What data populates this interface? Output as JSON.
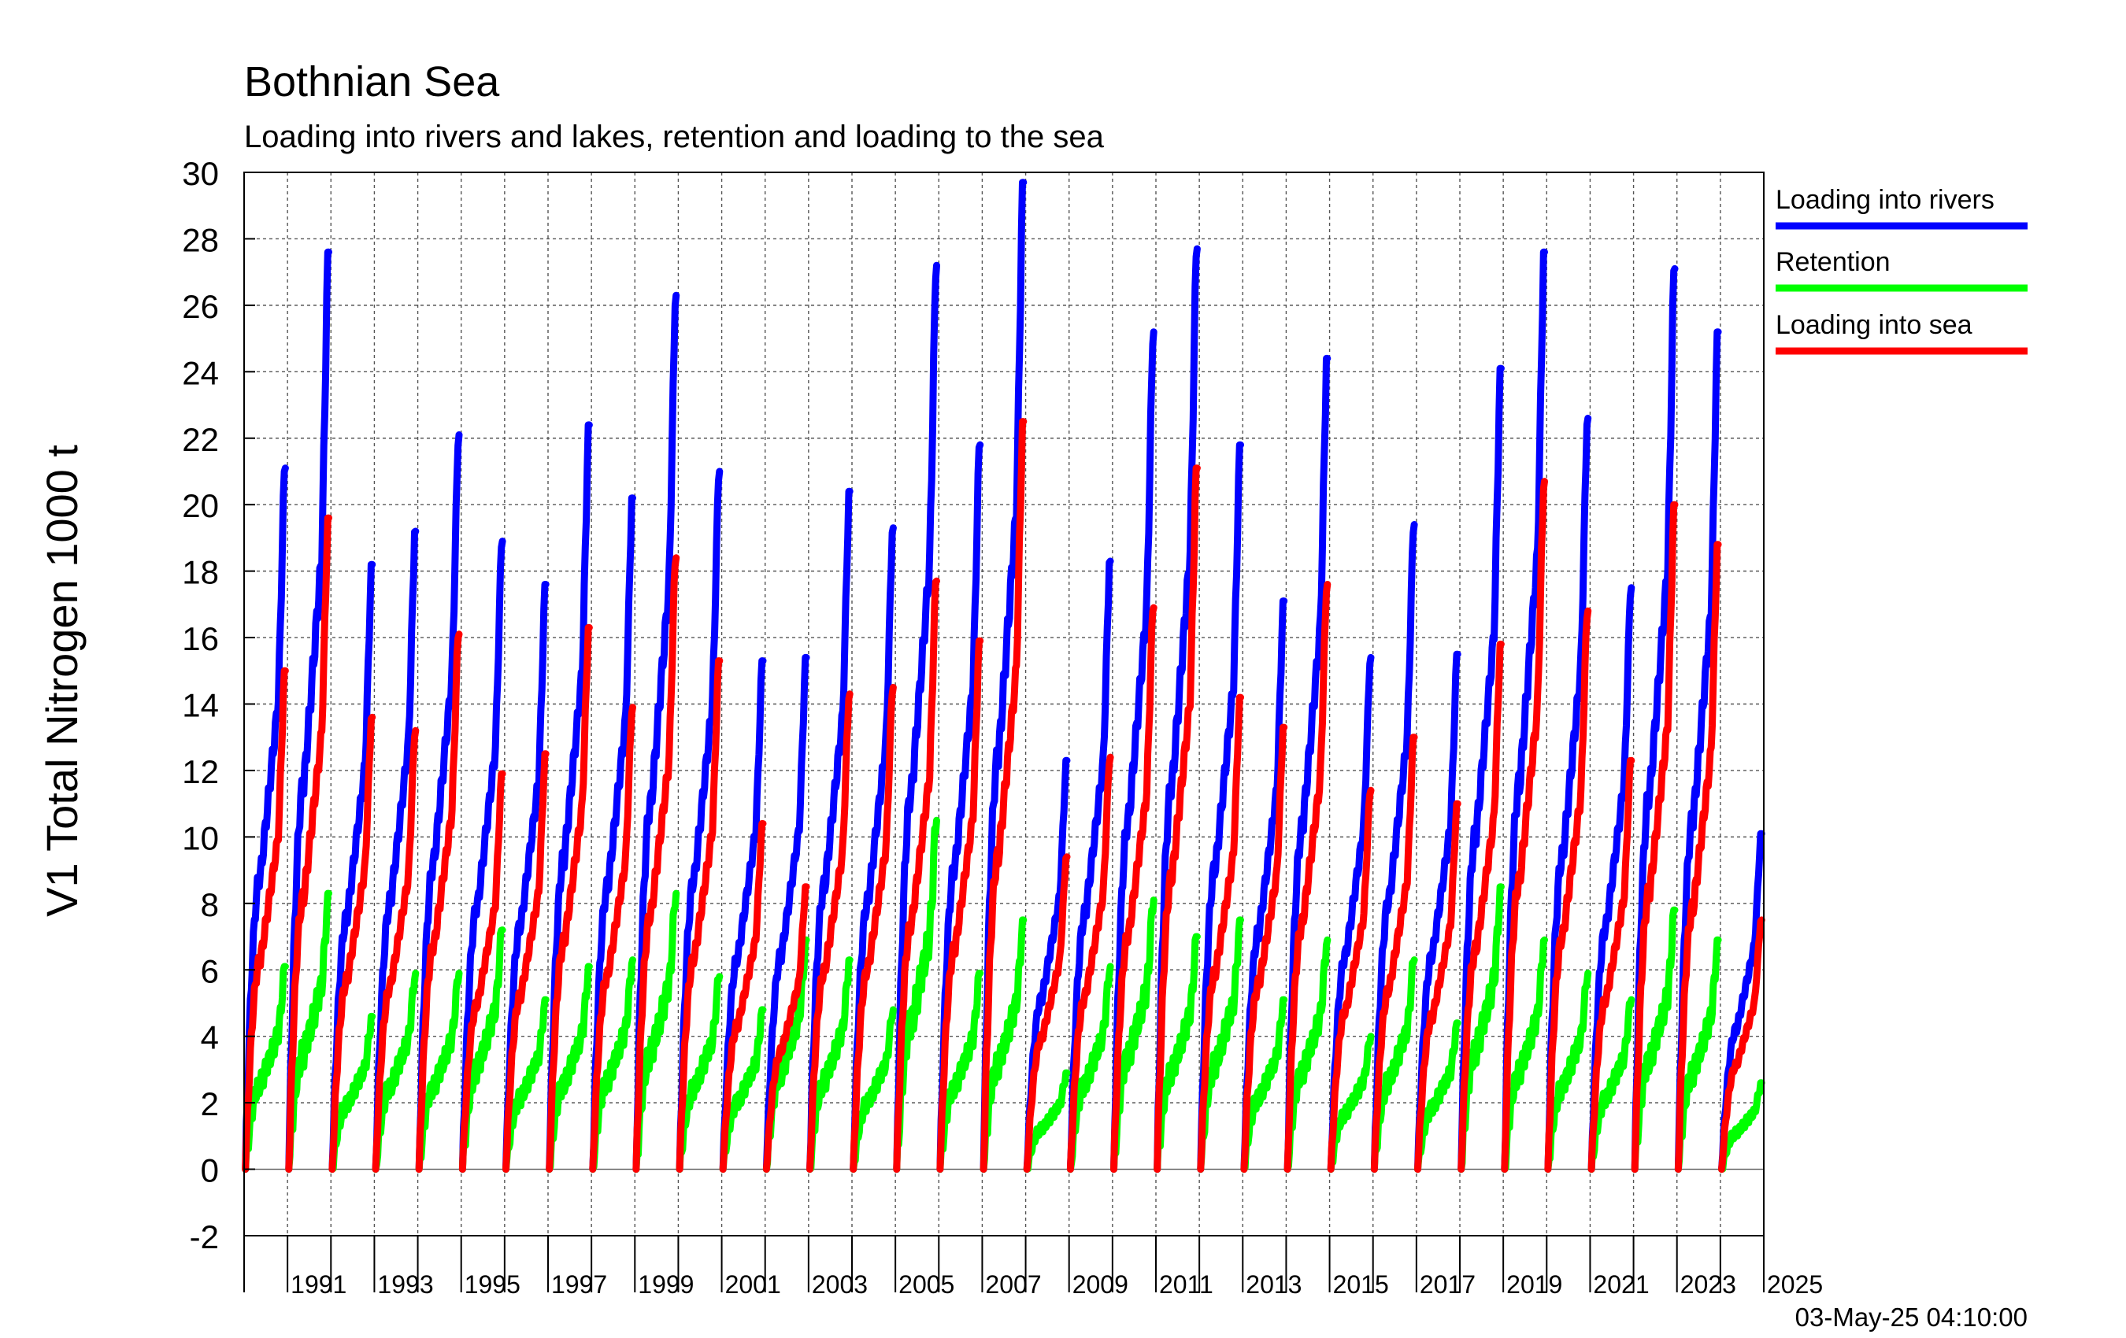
{
  "chart_data": {
    "type": "line",
    "title": "Bothnian Sea",
    "subtitle": "Loading into rivers and lakes, retention and loading to the sea",
    "ylabel": "V1 Total Nitrogen 1000 t",
    "xlabel": "",
    "xlim": [
      1990,
      2025
    ],
    "ylim": [
      -2,
      30
    ],
    "y_ticks": [
      -2,
      0,
      2,
      4,
      6,
      8,
      10,
      12,
      14,
      16,
      18,
      20,
      22,
      24,
      26,
      28,
      30
    ],
    "x_tick_labels": [
      "1991",
      "1993",
      "1995",
      "1997",
      "1999",
      "2001",
      "2003",
      "2005",
      "2007",
      "2009",
      "2011",
      "2013",
      "2015",
      "2017",
      "2019",
      "2021",
      "2023",
      "2025"
    ],
    "grid": true,
    "legend_position": "right",
    "timestamp": "03-May-25 04:10:00",
    "years": [
      1990,
      1991,
      1992,
      1993,
      1994,
      1995,
      1996,
      1997,
      1998,
      1999,
      2000,
      2001,
      2002,
      2003,
      2004,
      2005,
      2006,
      2007,
      2008,
      2009,
      2010,
      2011,
      2012,
      2013,
      2014,
      2015,
      2016,
      2017,
      2018,
      2019,
      2020,
      2021,
      2022,
      2023,
      2024,
      2025
    ],
    "series": [
      {
        "name": "Loading into rivers",
        "color": "#0000ff",
        "annual_end_values": [
          21.1,
          27.6,
          18.2,
          19.2,
          22.1,
          18.9,
          17.6,
          22.4,
          20.2,
          26.3,
          21.0,
          15.3,
          15.4,
          20.4,
          19.3,
          27.2,
          21.8,
          29.7,
          12.3,
          18.3,
          25.2,
          27.7,
          21.8,
          17.1,
          24.4,
          15.4,
          19.4,
          15.5,
          24.1,
          27.6,
          22.6,
          17.5,
          27.1,
          25.2,
          10.1
        ]
      },
      {
        "name": "Retention",
        "color": "#00ff00",
        "annual_end_values": [
          6.1,
          8.3,
          4.6,
          5.9,
          5.9,
          7.2,
          5.1,
          6.1,
          6.3,
          8.3,
          5.8,
          4.8,
          6.9,
          6.3,
          4.8,
          10.5,
          5.9,
          7.5,
          2.9,
          6.1,
          8.1,
          7.0,
          7.5,
          5.1,
          6.9,
          4.0,
          6.3,
          4.4,
          8.5,
          6.9,
          5.9,
          5.1,
          7.8,
          6.9,
          2.6
        ]
      },
      {
        "name": "Loading into sea",
        "color": "#ff0000",
        "annual_end_values": [
          15.0,
          19.6,
          13.6,
          13.2,
          16.1,
          11.9,
          12.5,
          16.3,
          13.9,
          18.4,
          15.3,
          10.4,
          8.5,
          14.3,
          14.5,
          17.7,
          15.9,
          22.5,
          9.4,
          12.4,
          16.9,
          21.1,
          14.2,
          13.3,
          17.6,
          11.4,
          13.0,
          11.0,
          15.8,
          20.7,
          16.8,
          12.3,
          20.0,
          18.8,
          7.5
        ]
      }
    ]
  }
}
